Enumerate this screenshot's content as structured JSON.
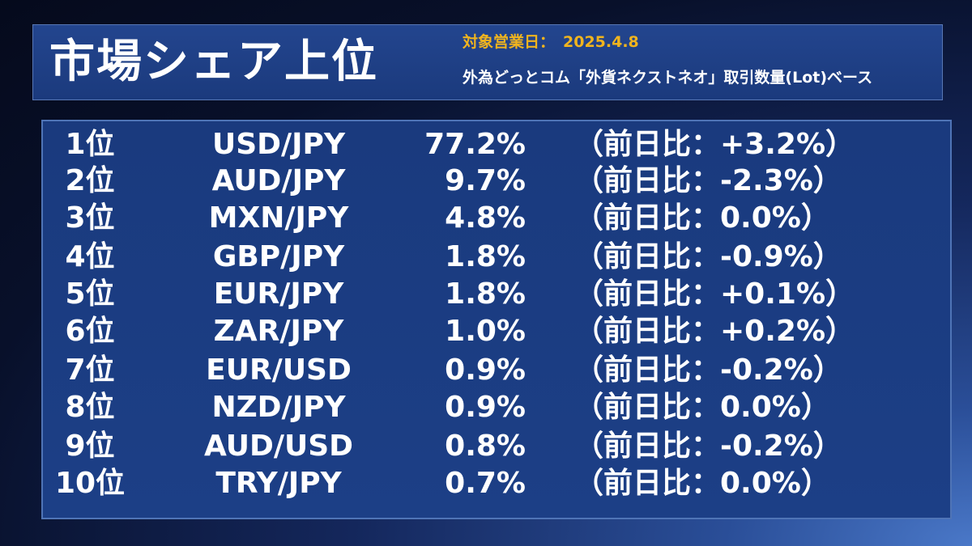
{
  "header": {
    "title": "市場シェア上位",
    "date_label": "対象営業日：",
    "date_value": "2025.4.8",
    "subtitle": "外為どっとコム「外貨ネクストネオ」取引数量(Lot)ベース"
  },
  "rankings": [
    {
      "rank": "1位",
      "pair": "USD/JPY",
      "share": "77.2%",
      "change": "（前日比：+3.2%）"
    },
    {
      "rank": "2位",
      "pair": "AUD/JPY",
      "share": "9.7%",
      "change": "（前日比：-2.3%）"
    },
    {
      "rank": "3位",
      "pair": "MXN/JPY",
      "share": "4.8%",
      "change": "（前日比：0.0%）"
    },
    {
      "rank": "4位",
      "pair": "GBP/JPY",
      "share": "1.8%",
      "change": "（前日比：-0.9%）"
    },
    {
      "rank": "5位",
      "pair": "EUR/JPY",
      "share": "1.8%",
      "change": "（前日比：+0.1%）"
    },
    {
      "rank": "6位",
      "pair": "ZAR/JPY",
      "share": "1.0%",
      "change": "（前日比：+0.2%）"
    },
    {
      "rank": "7位",
      "pair": "EUR/USD",
      "share": "0.9%",
      "change": "（前日比：-0.2%）"
    },
    {
      "rank": "8位",
      "pair": "NZD/JPY",
      "share": "0.9%",
      "change": "（前日比：0.0%）"
    },
    {
      "rank": "9位",
      "pair": "AUD/USD",
      "share": "0.8%",
      "change": "（前日比：-0.2%）"
    },
    {
      "rank": "10位",
      "pair": "TRY/JPY",
      "share": "0.7%",
      "change": "（前日比：0.0%）"
    }
  ],
  "colors": {
    "accent": "#f0b41e",
    "panel": "#1b3a7d",
    "border": "#4f74b6"
  }
}
